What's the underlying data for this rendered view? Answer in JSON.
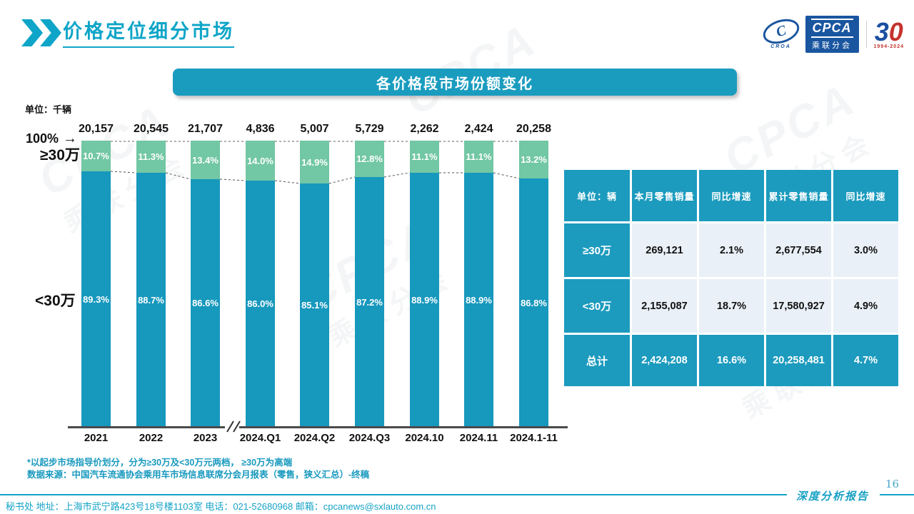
{
  "header": {
    "title": "价格定位细分市场",
    "logo_cpca": "CPCA",
    "logo_sub": "乘联分会",
    "logo_croa": "CROA",
    "logo_30_left": "3",
    "logo_30_right": "0",
    "logo_years": "1994-2024"
  },
  "banner": {
    "title": "各价格段市场份额变化"
  },
  "chart_labels": {
    "unit": "单位：千辆",
    "hundred": "100%",
    "arrow": "→",
    "upper": "≥30万",
    "lower": "<30万"
  },
  "chart_data": {
    "type": "bar",
    "stacked": true,
    "title": "各价格段市场份额变化",
    "unit": "千辆",
    "ylim": [
      0,
      100
    ],
    "grid": false,
    "legend_position": "left-axis",
    "categories": [
      "2021",
      "2022",
      "2023",
      "2024.Q1",
      "2024.Q2",
      "2024.Q3",
      "2024.10",
      "2024.11",
      "2024.1-11"
    ],
    "totals": [
      "20,157",
      "20,545",
      "21,707",
      "4,836",
      "5,007",
      "5,729",
      "2,262",
      "2,424",
      "20,258"
    ],
    "series": [
      {
        "name": "≥30万",
        "color": "#72C7A4",
        "values": [
          10.7,
          11.3,
          13.4,
          14.0,
          14.9,
          12.8,
          11.1,
          11.1,
          13.2
        ]
      },
      {
        "name": "<30万",
        "color": "#1798BD",
        "values": [
          89.3,
          88.7,
          86.6,
          86.0,
          85.1,
          87.2,
          88.9,
          88.9,
          86.8
        ]
      }
    ],
    "axis_break_between": [
      "2023",
      "2024.Q1"
    ]
  },
  "table": {
    "headers": [
      "单位：辆",
      "本月零售销量",
      "同比增速",
      "累计零售销量",
      "同比增速"
    ],
    "rows": [
      {
        "label": "≥30万",
        "cells": [
          "269,121",
          "2.1%",
          "2,677,554",
          "3.0%"
        ],
        "total": false
      },
      {
        "label": "<30万",
        "cells": [
          "2,155,087",
          "18.7%",
          "17,580,927",
          "4.9%"
        ],
        "total": false
      },
      {
        "label": "总计",
        "cells": [
          "2,424,208",
          "16.6%",
          "20,258,481",
          "4.7%"
        ],
        "total": true
      }
    ]
  },
  "footnotes": [
    "*以起步市场指导价划分，分为≥30万及<30万元两档， ≥30万为高端",
    "数据来源：中国汽车流通协会乘用车市场信息联席分会月报表（零售，狭义汇总）-终稿"
  ],
  "footer": {
    "contact": "秘书处  地址：上海市武宁路423号18号楼1103室 电话：021-52680968  邮箱：cpcanews@sxlauto.com.cn",
    "report_label": "深度分析报告",
    "page_number": "16"
  },
  "watermark": {
    "line1": "CPCA",
    "line2": "乘联分会"
  }
}
